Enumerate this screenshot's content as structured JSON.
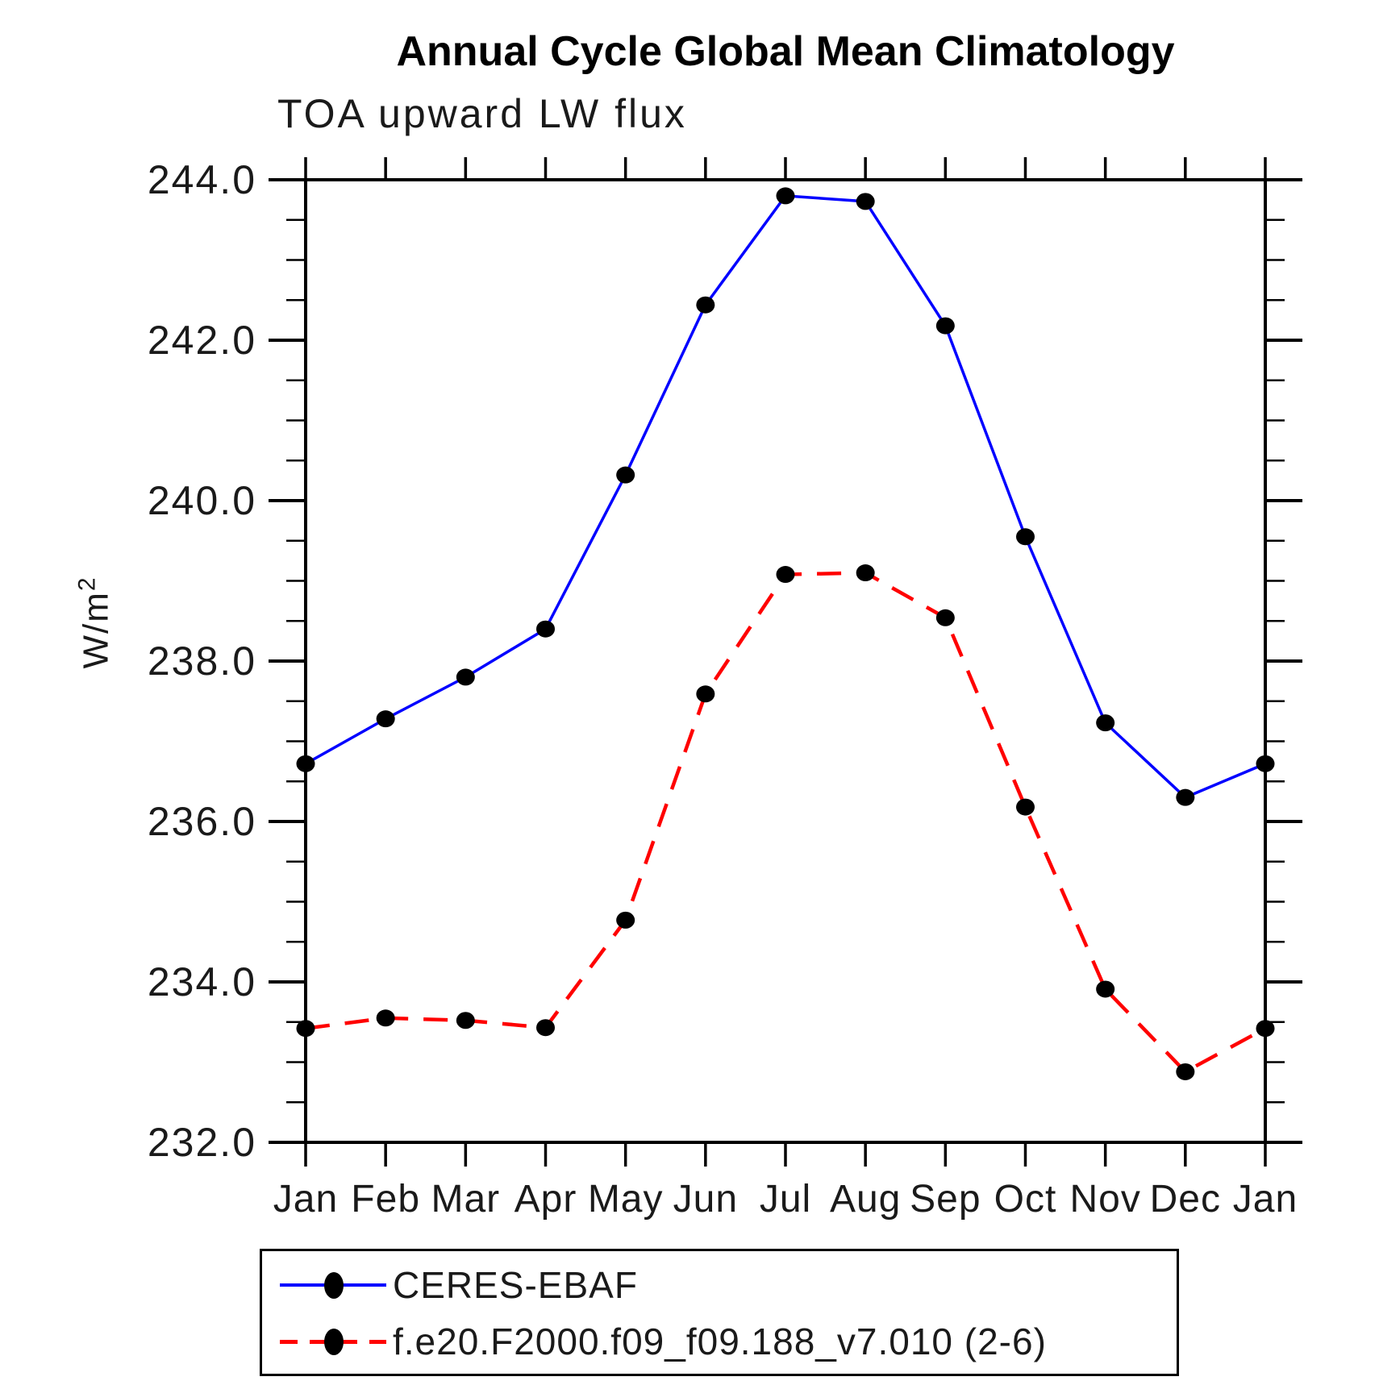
{
  "page": {
    "title": "Annual Cycle Global Mean Climatology",
    "subtitle": "TOA upward LW flux",
    "y_unit_base": "W/m",
    "y_unit_exponent": "2"
  },
  "colors": {
    "obs_line": "#0000ff",
    "model_line": "#ff0000",
    "marker": "#000000",
    "axis": "#000000",
    "background": "#ffffff"
  },
  "chart_data": {
    "type": "line",
    "title": "Annual Cycle Global Mean Climatology",
    "subtitle": "TOA upward LW flux",
    "xlabel": "",
    "ylabel": "W/m^2",
    "x_categories": [
      "Jan",
      "Feb",
      "Mar",
      "Apr",
      "May",
      "Jun",
      "Jul",
      "Aug",
      "Sep",
      "Oct",
      "Nov",
      "Dec",
      "Jan"
    ],
    "ylim": [
      232.0,
      244.0
    ],
    "y_major_tick_step": 2.0,
    "y_minor_tick_step": 0.5,
    "y_tick_labels": [
      "232.0",
      "234.0",
      "236.0",
      "238.0",
      "240.0",
      "242.0",
      "244.0"
    ],
    "grid": false,
    "legend_position": "bottom-left-box",
    "series": [
      {
        "name": "CERES-EBAF",
        "color": "#0000ff",
        "line_style": "solid",
        "marker": "filled-circle",
        "marker_color": "#000000",
        "values": [
          236.72,
          237.28,
          237.8,
          238.4,
          240.32,
          242.44,
          243.8,
          243.73,
          242.18,
          239.55,
          237.23,
          236.3,
          236.72
        ]
      },
      {
        "name": "f.e20.F2000.f09_f09.188_v7.010 (2-6)",
        "color": "#ff0000",
        "line_style": "dashed",
        "marker": "filled-circle",
        "marker_color": "#000000",
        "values": [
          233.42,
          233.55,
          233.52,
          233.43,
          234.77,
          237.59,
          239.08,
          239.1,
          238.54,
          236.18,
          233.91,
          232.88,
          233.42
        ]
      }
    ]
  }
}
